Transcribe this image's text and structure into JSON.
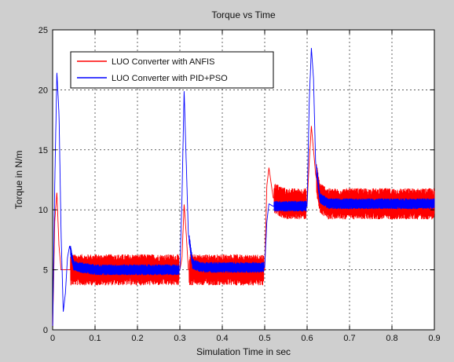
{
  "chart_data": {
    "type": "line",
    "title": "Torque vs Time",
    "xlabel": "Simulation Time in sec",
    "ylabel": "Torque in N/m",
    "xlim": [
      0,
      0.9
    ],
    "ylim": [
      0,
      25
    ],
    "xticks": [
      "0",
      "0.1",
      "0.2",
      "0.3",
      "0.4",
      "0.5",
      "0.6",
      "0.7",
      "0.8",
      "0.9"
    ],
    "yticks": [
      "0",
      "5",
      "10",
      "15",
      "20",
      "25"
    ],
    "grid": true,
    "legend_position": "top-left",
    "series": [
      {
        "name": "LUO Converter with ANFIS",
        "color": "#ff0000",
        "x": [
          0,
          0.005,
          0.01,
          0.015,
          0.02,
          0.03,
          0.04,
          0.1,
          0.2,
          0.3,
          0.305,
          0.31,
          0.315,
          0.32,
          0.33,
          0.35,
          0.4,
          0.45,
          0.5,
          0.505,
          0.51,
          0.52,
          0.55,
          0.6,
          0.605,
          0.61,
          0.62,
          0.63,
          0.65,
          0.7,
          0.75,
          0.8,
          0.85,
          0.9
        ],
        "y": [
          0,
          9,
          11.5,
          7,
          5,
          5,
          5,
          5,
          5,
          5,
          6,
          10.5,
          8,
          5,
          5,
          5,
          5,
          5,
          5,
          12,
          13.5,
          11,
          10.5,
          10.5,
          14,
          17,
          13,
          11,
          10.5,
          10.5,
          10.5,
          10.5,
          10.5,
          10.5
        ],
        "noise_band": 1.3
      },
      {
        "name": "LUO Converter with PID+PSO",
        "color": "#0000ff",
        "x": [
          0,
          0.005,
          0.01,
          0.015,
          0.02,
          0.025,
          0.03,
          0.035,
          0.04,
          0.05,
          0.1,
          0.2,
          0.3,
          0.305,
          0.31,
          0.315,
          0.32,
          0.33,
          0.35,
          0.4,
          0.45,
          0.5,
          0.505,
          0.51,
          0.52,
          0.55,
          0.6,
          0.605,
          0.61,
          0.615,
          0.62,
          0.63,
          0.65,
          0.7,
          0.75,
          0.8,
          0.85,
          0.9
        ],
        "y": [
          0,
          12,
          21.5,
          18,
          8,
          1.5,
          3,
          6,
          7,
          5.3,
          5,
          5,
          5,
          11,
          20,
          14,
          8,
          5.5,
          5.2,
          5.2,
          5.2,
          5.2,
          9,
          10.5,
          10.3,
          10.3,
          10.3,
          19,
          23.5,
          21,
          14,
          11,
          10.5,
          10.5,
          10.5,
          10.5,
          10.5,
          10.5
        ],
        "noise_band": 0.45
      }
    ]
  }
}
